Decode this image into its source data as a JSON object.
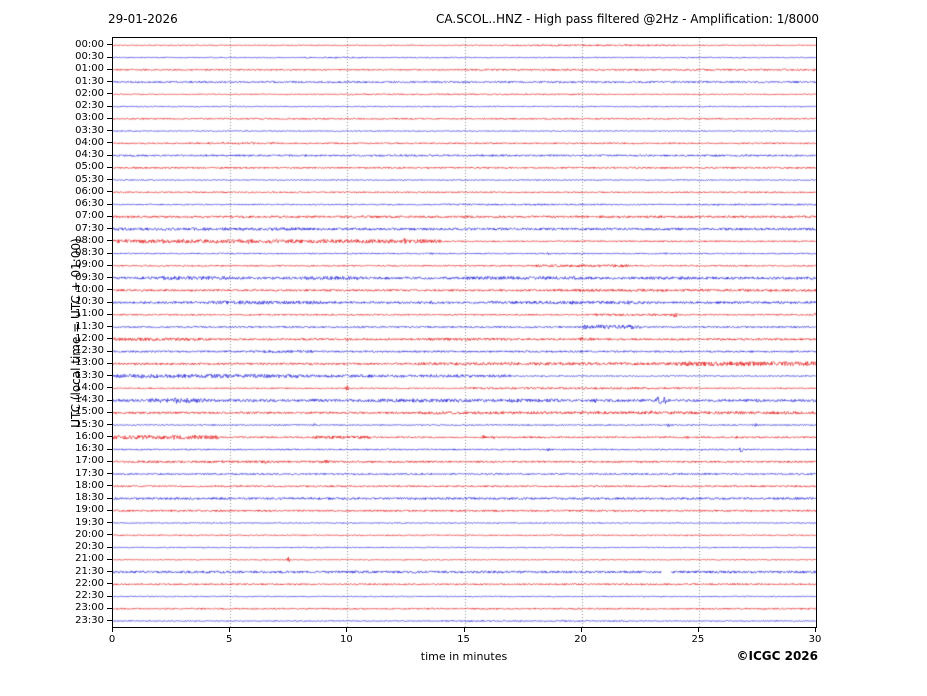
{
  "header": {
    "date": "29-01-2026",
    "title": "CA.SCOL..HNZ - High pass filtered @2Hz - Amplification: 1/8000"
  },
  "footer": {
    "credit": "©ICGC 2026"
  },
  "chart_data": {
    "type": "line",
    "subtype": "helicorder-day-plot",
    "title": "CA.SCOL..HNZ - High pass filtered @2Hz - Amplification: 1/8000",
    "date": "29-01-2026",
    "xlabel": "time in minutes",
    "ylabel": "UTC (local time = UTC + 01:00)",
    "x_range": [
      0,
      30
    ],
    "x_ticks": [
      0,
      5,
      10,
      15,
      20,
      25,
      30
    ],
    "grid_minutes": [
      5,
      10,
      15,
      20,
      25
    ],
    "grid_on": true,
    "colors": {
      "red": "#e31010",
      "blue": "#1a1ad8",
      "grid": "#777777",
      "frame": "#000000"
    },
    "rows": [
      {
        "label": "00:00",
        "color": "red",
        "amp": 0.5,
        "segments": [
          [
            17,
            24,
            0.8
          ]
        ],
        "spikes": [],
        "gaps": []
      },
      {
        "label": "00:30",
        "color": "blue",
        "amp": 0.5,
        "segments": [
          [
            8,
            11,
            0.7
          ]
        ],
        "spikes": [
          [
            20.6,
            0.9
          ]
        ],
        "gaps": []
      },
      {
        "label": "01:00",
        "color": "red",
        "amp": 0.7,
        "segments": [
          [
            15,
            30,
            0.9
          ]
        ],
        "spikes": [],
        "gaps": []
      },
      {
        "label": "01:30",
        "color": "blue",
        "amp": 0.9,
        "segments": [],
        "spikes": [],
        "gaps": []
      },
      {
        "label": "02:00",
        "color": "red",
        "amp": 0.5,
        "segments": [
          [
            10,
            20,
            0.7
          ]
        ],
        "spikes": [],
        "gaps": []
      },
      {
        "label": "02:30",
        "color": "blue",
        "amp": 0.5,
        "segments": [],
        "spikes": [
          [
            23,
            0.8
          ]
        ],
        "gaps": []
      },
      {
        "label": "03:00",
        "color": "red",
        "amp": 0.7,
        "segments": [],
        "spikes": [],
        "gaps": []
      },
      {
        "label": "03:30",
        "color": "blue",
        "amp": 0.5,
        "segments": [],
        "spikes": [],
        "gaps": []
      },
      {
        "label": "04:00",
        "color": "red",
        "amp": 0.7,
        "segments": [
          [
            4,
            7,
            1.0
          ]
        ],
        "spikes": [],
        "gaps": []
      },
      {
        "label": "04:30",
        "color": "blue",
        "amp": 0.9,
        "segments": [],
        "spikes": [],
        "gaps": []
      },
      {
        "label": "05:00",
        "color": "red",
        "amp": 0.8,
        "segments": [],
        "spikes": [],
        "gaps": []
      },
      {
        "label": "05:30",
        "color": "blue",
        "amp": 0.5,
        "segments": [],
        "spikes": [],
        "gaps": []
      },
      {
        "label": "06:00",
        "color": "red",
        "amp": 0.7,
        "segments": [],
        "spikes": [],
        "gaps": []
      },
      {
        "label": "06:30",
        "color": "blue",
        "amp": 0.6,
        "segments": [
          [
            14,
            21,
            0.8
          ],
          [
            25,
            30,
            0.8
          ]
        ],
        "spikes": [
          [
            14.9,
            1.3
          ],
          [
            28,
            1.2
          ]
        ],
        "gaps": []
      },
      {
        "label": "07:00",
        "color": "red",
        "amp": 1.1,
        "segments": [],
        "spikes": [],
        "gaps": []
      },
      {
        "label": "07:30",
        "color": "blue",
        "amp": 1.2,
        "segments": [
          [
            0,
            8,
            1.5
          ]
        ],
        "spikes": [],
        "gaps": []
      },
      {
        "label": "08:00",
        "color": "red",
        "amp": 0.7,
        "segments": [
          [
            0,
            14,
            1.8
          ]
        ],
        "spikes": [
          [
            0.6,
            2.8
          ],
          [
            1.3,
            2.8
          ],
          [
            2.1,
            2.4
          ],
          [
            3,
            2.4
          ],
          [
            4.4,
            2.2
          ],
          [
            5.8,
            2.8
          ],
          [
            7,
            2.2
          ],
          [
            8,
            2.4
          ],
          [
            11.8,
            2.6
          ],
          [
            12.4,
            3.2
          ],
          [
            13.1,
            2.4
          ]
        ],
        "gaps": []
      },
      {
        "label": "08:30",
        "color": "blue",
        "amp": 0.6,
        "segments": [],
        "spikes": [
          [
            13.6,
            1.1
          ],
          [
            16,
            1.2
          ],
          [
            18.6,
            1.5
          ],
          [
            20,
            1.0
          ],
          [
            23.6,
            1.0
          ]
        ],
        "gaps": []
      },
      {
        "label": "09:00",
        "color": "red",
        "amp": 0.7,
        "segments": [
          [
            18,
            22,
            1.3
          ]
        ],
        "spikes": [
          [
            19,
            1.5
          ],
          [
            21,
            1.2
          ],
          [
            23.6,
            1.0
          ]
        ],
        "gaps": []
      },
      {
        "label": "09:30",
        "color": "blue",
        "amp": 1.3,
        "segments": [
          [
            2,
            5,
            1.9
          ],
          [
            8,
            10.5,
            1.7
          ],
          [
            15,
            20,
            1.6
          ],
          [
            23,
            25,
            1.5
          ]
        ],
        "spikes": [
          [
            3.5,
            2.4
          ],
          [
            9.5,
            2.0
          ],
          [
            16.5,
            1.8
          ],
          [
            24,
            1.8
          ],
          [
            29.8,
            1.8
          ]
        ],
        "gaps": []
      },
      {
        "label": "10:00",
        "color": "red",
        "amp": 1.0,
        "segments": [
          [
            19,
            30,
            1.3
          ]
        ],
        "spikes": [],
        "gaps": []
      },
      {
        "label": "10:30",
        "color": "blue",
        "amp": 1.1,
        "segments": [
          [
            4,
            9,
            1.7
          ],
          [
            16,
            23,
            1.5
          ]
        ],
        "spikes": [
          [
            4.5,
            2.3
          ],
          [
            8.6,
            2.0
          ],
          [
            13.6,
            1.8
          ],
          [
            19.6,
            2.0
          ],
          [
            22,
            1.9
          ],
          [
            25,
            1.5
          ]
        ],
        "gaps": []
      },
      {
        "label": "11:00",
        "color": "red",
        "amp": 0.7,
        "segments": [
          [
            20,
            24,
            1.1
          ]
        ],
        "spikes": [
          [
            21,
            1.4
          ],
          [
            24,
            2.6
          ],
          [
            29.9,
            3.0,
            0.08
          ]
        ],
        "gaps": []
      },
      {
        "label": "11:30",
        "color": "blue",
        "amp": 0.8,
        "segments": [
          [
            20,
            22.5,
            2.1
          ]
        ],
        "spikes": [
          [
            20.7,
            2.6
          ],
          [
            25.7,
            1.5
          ],
          [
            27,
            1.2
          ]
        ],
        "gaps": []
      },
      {
        "label": "12:00",
        "color": "red",
        "amp": 1.0,
        "segments": [
          [
            0,
            4,
            1.5
          ],
          [
            13,
            17,
            1.3
          ]
        ],
        "spikes": [
          [
            2.8,
            1.9
          ],
          [
            3.4,
            1.9
          ],
          [
            10,
            1.5
          ],
          [
            20,
            2.3
          ],
          [
            20.4,
            1.8
          ],
          [
            24.6,
            1.5
          ]
        ],
        "gaps": []
      },
      {
        "label": "12:30",
        "color": "blue",
        "amp": 0.9,
        "segments": [
          [
            6,
            8.5,
            1.3
          ]
        ],
        "spikes": [
          [
            7.6,
            1.5
          ],
          [
            11.5,
            1.2
          ]
        ],
        "gaps": []
      },
      {
        "label": "13:00",
        "color": "red",
        "amp": 1.0,
        "segments": [
          [
            13,
            24,
            1.4
          ],
          [
            24,
            30,
            2.2
          ]
        ],
        "spikes": [
          [
            17,
            1.8
          ],
          [
            26,
            2.4
          ],
          [
            28,
            2.4
          ],
          [
            29.5,
            2.2
          ]
        ],
        "gaps": []
      },
      {
        "label": "13:30",
        "color": "blue",
        "amp": 0.6,
        "segments": [
          [
            0,
            8,
            1.9
          ],
          [
            8,
            17,
            1.4
          ]
        ],
        "spikes": [
          [
            0.5,
            2.4
          ],
          [
            1.2,
            2.2
          ],
          [
            3,
            2.4
          ],
          [
            4.6,
            2.4
          ],
          [
            10.6,
            2.0
          ]
        ],
        "gaps": []
      },
      {
        "label": "14:00",
        "color": "red",
        "amp": 0.6,
        "segments": [
          [
            15,
            25,
            1.0
          ]
        ],
        "spikes": [
          [
            10,
            2.8,
            0.07
          ]
        ],
        "gaps": []
      },
      {
        "label": "14:30",
        "color": "blue",
        "amp": 1.3,
        "segments": [
          [
            1.5,
            4,
            2.1
          ],
          [
            11,
            19,
            1.7
          ]
        ],
        "spikes": [
          [
            2.7,
            3.2
          ],
          [
            3.2,
            3.2
          ],
          [
            8.6,
            2.4
          ],
          [
            12.8,
            2.0
          ],
          [
            14.9,
            2.0
          ],
          [
            17,
            2.0
          ],
          [
            20.6,
            2.2
          ],
          [
            23.3,
            4.0,
            0.2
          ],
          [
            23.6,
            4.2,
            0.15
          ],
          [
            27.5,
            1.9
          ]
        ],
        "gaps": []
      },
      {
        "label": "15:00",
        "color": "red",
        "amp": 1.0,
        "segments": [
          [
            13,
            30,
            1.4
          ]
        ],
        "spikes": [
          [
            5.5,
            1.4
          ],
          [
            14,
            1.7
          ],
          [
            23,
            2.2
          ],
          [
            25.6,
            1.8
          ],
          [
            26.6,
            1.8
          ]
        ],
        "gaps": []
      },
      {
        "label": "15:30",
        "color": "blue",
        "amp": 0.6,
        "segments": [],
        "spikes": [
          [
            8.6,
            1.4
          ],
          [
            23.7,
            1.9
          ],
          [
            27.4,
            1.7
          ]
        ],
        "gaps": []
      },
      {
        "label": "16:00",
        "color": "red",
        "amp": 0.8,
        "segments": [
          [
            0,
            4.5,
            2.0
          ],
          [
            8.5,
            11,
            1.4
          ]
        ],
        "spikes": [
          [
            1,
            2.8
          ],
          [
            1.6,
            2.8
          ],
          [
            2.6,
            2.3
          ],
          [
            9.3,
            2.7
          ],
          [
            10.5,
            2.1
          ],
          [
            15.8,
            2.0,
            0.1
          ],
          [
            16.2,
            1.7
          ],
          [
            24.5,
            1.4
          ],
          [
            26.6,
            1.2
          ]
        ],
        "gaps": []
      },
      {
        "label": "16:30",
        "color": "blue",
        "amp": 0.7,
        "segments": [],
        "spikes": [
          [
            18.6,
            1.4
          ],
          [
            26.8,
            2.8,
            0.1
          ]
        ],
        "gaps": []
      },
      {
        "label": "17:00",
        "color": "red",
        "amp": 0.9,
        "segments": [
          [
            0,
            10,
            1.1
          ]
        ],
        "spikes": [
          [
            4.7,
            1.6
          ],
          [
            6.5,
            1.9
          ],
          [
            9.1,
            2.3
          ],
          [
            13.3,
            1.4
          ],
          [
            15.2,
            1.4
          ],
          [
            22.6,
            1.2
          ]
        ],
        "gaps": []
      },
      {
        "label": "17:30",
        "color": "blue",
        "amp": 0.8,
        "segments": [],
        "spikes": [
          [
            2,
            1.0
          ],
          [
            9,
            1.0
          ]
        ],
        "gaps": []
      },
      {
        "label": "18:00",
        "color": "red",
        "amp": 0.8,
        "segments": [],
        "spikes": [
          [
            5.5,
            1.2
          ],
          [
            17,
            1.0
          ]
        ],
        "gaps": []
      },
      {
        "label": "18:30",
        "color": "blue",
        "amp": 1.1,
        "segments": [],
        "spikes": [],
        "gaps": []
      },
      {
        "label": "19:00",
        "color": "red",
        "amp": 0.9,
        "segments": [],
        "spikes": [],
        "gaps": []
      },
      {
        "label": "19:30",
        "color": "blue",
        "amp": 0.5,
        "segments": [],
        "spikes": [
          [
            16.2,
            0.8
          ]
        ],
        "gaps": []
      },
      {
        "label": "20:00",
        "color": "red",
        "amp": 0.6,
        "segments": [],
        "spikes": [],
        "gaps": []
      },
      {
        "label": "20:30",
        "color": "blue",
        "amp": 0.5,
        "segments": [],
        "spikes": [],
        "gaps": []
      },
      {
        "label": "21:00",
        "color": "red",
        "amp": 0.5,
        "segments": [],
        "spikes": [
          [
            7.5,
            3.0,
            0.07
          ]
        ],
        "gaps": []
      },
      {
        "label": "21:30",
        "color": "blue",
        "amp": 1.2,
        "segments": [],
        "spikes": [
          [
            3.5,
            1.4
          ]
        ],
        "gaps": [
          [
            23.4,
            23.8
          ]
        ]
      },
      {
        "label": "22:00",
        "color": "red",
        "amp": 0.8,
        "segments": [],
        "spikes": [],
        "gaps": []
      },
      {
        "label": "22:30",
        "color": "blue",
        "amp": 0.5,
        "segments": [],
        "spikes": [
          [
            23.3,
            0.9
          ],
          [
            25.6,
            0.8
          ]
        ],
        "gaps": []
      },
      {
        "label": "23:00",
        "color": "red",
        "amp": 0.7,
        "segments": [],
        "spikes": [
          [
            17.6,
            0.9
          ],
          [
            24.9,
            0.9
          ]
        ],
        "gaps": []
      },
      {
        "label": "23:30",
        "color": "blue",
        "amp": 0.5,
        "segments": [
          [
            14,
            22,
            0.7
          ]
        ],
        "spikes": [
          [
            19.2,
            1.3
          ]
        ],
        "gaps": []
      }
    ]
  }
}
